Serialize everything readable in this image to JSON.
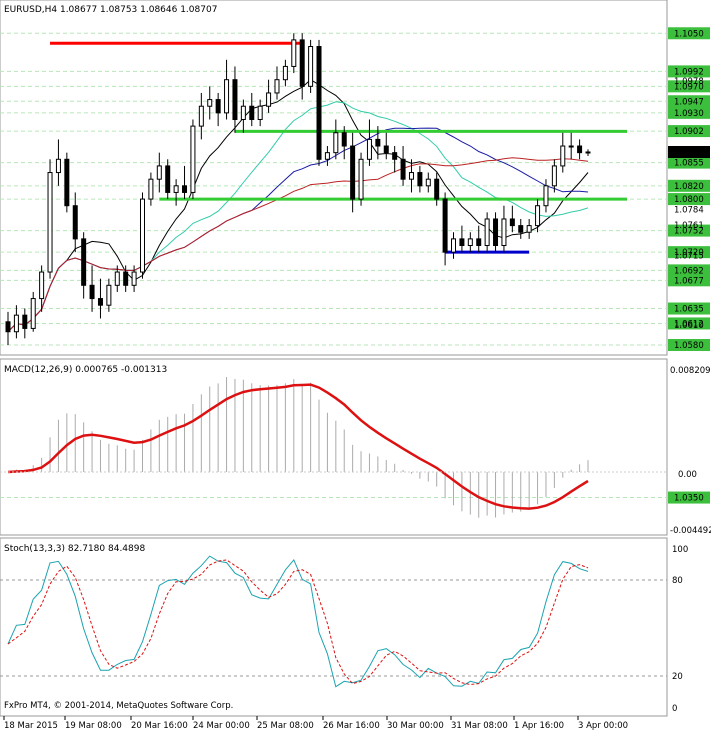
{
  "header": {
    "symbol_line": "EURUSD,H4  1.08677 1.08753 1.08646 1.08707"
  },
  "price_axis": {
    "gray_labels": [
      "1.0978",
      "1.0784",
      "1.0761",
      "1.0715",
      "1.0610"
    ],
    "level_labels": [
      {
        "text": "1.1050",
        "value": 1.105
      },
      {
        "text": "1.0350",
        "value": 1.035
      },
      {
        "text": "1.0992",
        "value": 1.09925
      },
      {
        "text": "1.0970",
        "value": 1.097
      },
      {
        "text": "1.0947",
        "value": 1.09475
      },
      {
        "text": "1.0930",
        "value": 1.093
      },
      {
        "text": "1.0902",
        "value": 1.09025
      },
      {
        "text": "1.0855",
        "value": 1.0855
      },
      {
        "text": "1.0820",
        "value": 1.082
      },
      {
        "text": "1.0800",
        "value": 1.08
      },
      {
        "text": "1.0752",
        "value": 1.07525
      },
      {
        "text": "1.0720",
        "value": 1.072
      },
      {
        "text": "1.0692",
        "value": 1.06925
      },
      {
        "text": "1.0677",
        "value": 1.06775
      },
      {
        "text": "1.0635",
        "value": 1.0635
      },
      {
        "text": "1.0612",
        "value": 1.06125
      },
      {
        "text": "1.0580",
        "value": 1.058
      }
    ],
    "current_price": "1.0870"
  },
  "macd": {
    "label": "MACD(12,26,9) 0.000765 -0.001313",
    "axis_top": "0.008209",
    "axis_zero": "0.00",
    "axis_bottom": "-0.004492"
  },
  "stoch": {
    "label": "Stoch(13,3,3) 82.7180 84.4898",
    "axis": [
      "100",
      "80",
      "20",
      "0"
    ]
  },
  "time_axis": [
    "18 Mar 2015",
    "19 Mar 08:00",
    "20 Mar 16:00",
    "24 Mar 00:00",
    "25 Mar 08:00",
    "26 Mar 16:00",
    "30 Mar 00:00",
    "31 Mar 08:00",
    "1 Apr 16:00",
    "3 Apr 00:00"
  ],
  "copyright": "FxPro MT4, © 2001-2014, MetaQuotes Software Corp.",
  "colors": {
    "bull": "#ffffff",
    "bear": "#000000",
    "resistance": "#ff0000",
    "support": "#0000cc",
    "level": "#33cc33",
    "ma_blue": "#1a1aa6",
    "ma_red": "#bb2222",
    "ma_teal": "#33ccaa",
    "ma_black": "#000000",
    "macd_signal": "#dd1111",
    "stoch_main": "#1aa3b0",
    "stoch_signal": "#dd1111"
  },
  "chart_data": {
    "type": "candlestick",
    "ylim": [
      1.058,
      1.107
    ],
    "candles": [
      [
        1.0615,
        1.063,
        1.058,
        1.06
      ],
      [
        1.06,
        1.064,
        1.059,
        1.0625
      ],
      [
        1.0625,
        1.0635,
        1.059,
        1.0605
      ],
      [
        1.0605,
        1.066,
        1.06,
        1.065
      ],
      [
        1.065,
        1.07,
        1.063,
        1.069
      ],
      [
        1.069,
        1.086,
        1.068,
        1.084
      ],
      [
        1.084,
        1.089,
        1.082,
        1.086
      ],
      [
        1.086,
        1.087,
        1.078,
        1.079
      ],
      [
        1.079,
        1.081,
        1.072,
        1.074
      ],
      [
        1.074,
        1.075,
        1.065,
        1.067
      ],
      [
        1.067,
        1.07,
        1.063,
        1.065
      ],
      [
        1.065,
        1.068,
        1.062,
        1.064
      ],
      [
        1.064,
        1.068,
        1.063,
        1.067
      ],
      [
        1.067,
        1.07,
        1.066,
        1.069
      ],
      [
        1.069,
        1.07,
        1.066,
        1.067
      ],
      [
        1.067,
        1.07,
        1.066,
        1.069
      ],
      [
        1.069,
        1.081,
        1.068,
        1.08
      ],
      [
        1.08,
        1.084,
        1.079,
        1.083
      ],
      [
        1.083,
        1.087,
        1.081,
        1.085
      ],
      [
        1.085,
        1.086,
        1.08,
        1.081
      ],
      [
        1.081,
        1.083,
        1.079,
        1.082
      ],
      [
        1.082,
        1.085,
        1.08,
        1.081
      ],
      [
        1.081,
        1.092,
        1.08,
        1.091
      ],
      [
        1.091,
        1.096,
        1.089,
        1.094
      ],
      [
        1.094,
        1.097,
        1.092,
        1.095
      ],
      [
        1.095,
        1.096,
        1.091,
        1.093
      ],
      [
        1.093,
        1.101,
        1.092,
        1.098
      ],
      [
        1.098,
        1.1,
        1.09,
        1.092
      ],
      [
        1.092,
        1.095,
        1.09,
        1.094
      ],
      [
        1.094,
        1.096,
        1.091,
        1.092
      ],
      [
        1.092,
        1.095,
        1.091,
        1.094
      ],
      [
        1.094,
        1.098,
        1.093,
        1.096
      ],
      [
        1.096,
        1.1,
        1.095,
        1.098
      ],
      [
        1.098,
        1.101,
        1.097,
        1.1
      ],
      [
        1.1,
        1.105,
        1.099,
        1.104
      ],
      [
        1.104,
        1.105,
        1.095,
        1.097
      ],
      [
        1.097,
        1.104,
        1.096,
        1.103
      ],
      [
        1.103,
        1.104,
        1.085,
        1.086
      ],
      [
        1.086,
        1.088,
        1.085,
        1.087
      ],
      [
        1.087,
        1.092,
        1.086,
        1.09
      ],
      [
        1.09,
        1.091,
        1.086,
        1.088
      ],
      [
        1.088,
        1.09,
        1.078,
        1.08
      ],
      [
        1.08,
        1.087,
        1.079,
        1.086
      ],
      [
        1.086,
        1.092,
        1.085,
        1.089
      ],
      [
        1.089,
        1.091,
        1.086,
        1.088
      ],
      [
        1.088,
        1.09,
        1.086,
        1.087
      ],
      [
        1.087,
        1.088,
        1.084,
        1.086
      ],
      [
        1.086,
        1.088,
        1.082,
        1.083
      ],
      [
        1.083,
        1.086,
        1.081,
        1.084
      ],
      [
        1.084,
        1.085,
        1.081,
        1.082
      ],
      [
        1.082,
        1.084,
        1.081,
        1.083
      ],
      [
        1.083,
        1.084,
        1.079,
        1.08
      ],
      [
        1.08,
        1.081,
        1.07,
        1.072
      ],
      [
        1.072,
        1.075,
        1.071,
        1.074
      ],
      [
        1.074,
        1.076,
        1.072,
        1.073
      ],
      [
        1.073,
        1.075,
        1.072,
        1.074
      ],
      [
        1.074,
        1.076,
        1.072,
        1.073
      ],
      [
        1.073,
        1.078,
        1.072,
        1.077
      ],
      [
        1.077,
        1.078,
        1.072,
        1.073
      ],
      [
        1.073,
        1.079,
        1.072,
        1.077
      ],
      [
        1.077,
        1.079,
        1.075,
        1.076
      ],
      [
        1.076,
        1.077,
        1.074,
        1.075
      ],
      [
        1.075,
        1.077,
        1.074,
        1.076
      ],
      [
        1.076,
        1.08,
        1.075,
        1.079
      ],
      [
        1.079,
        1.083,
        1.078,
        1.082
      ],
      [
        1.082,
        1.086,
        1.081,
        1.085
      ],
      [
        1.085,
        1.09,
        1.084,
        1.088
      ],
      [
        1.088,
        1.09,
        1.086,
        1.088
      ],
      [
        1.088,
        1.089,
        1.086,
        1.087
      ],
      [
        1.087,
        1.0875,
        1.0865,
        1.0871
      ]
    ],
    "levels_green": [
      1.0902,
      1.08
    ],
    "resistance_red": 1.1035,
    "support_blue": 1.072
  }
}
